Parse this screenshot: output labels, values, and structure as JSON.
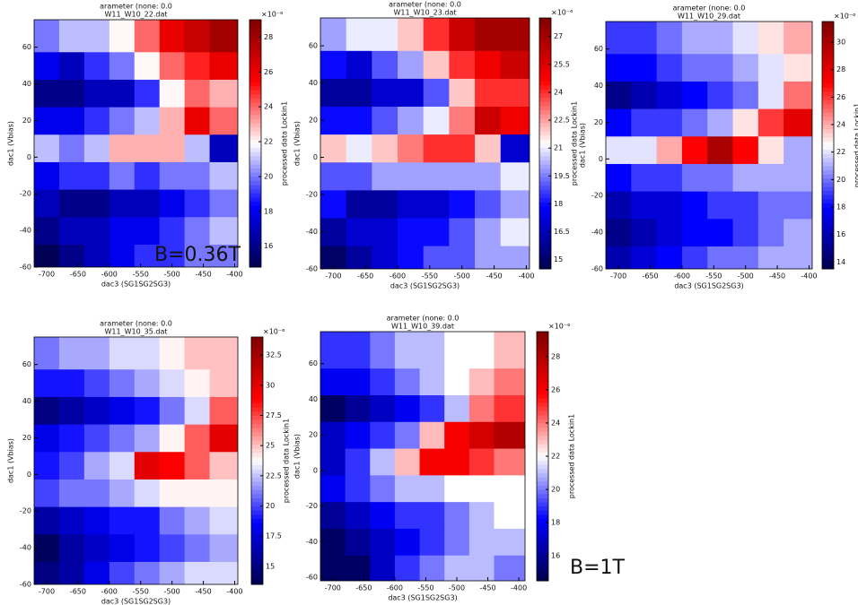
{
  "chart_data": [
    {
      "type": "heatmap",
      "title": "arameter (none: 0.0",
      "subtitle": "W11_W10_22.dat",
      "xlabel": "dac3 (SG1SG2SG3)",
      "ylabel": "dac1 (Vbias)",
      "colorbar_label": "processed data Lockin1",
      "colorbar_scale": "×10⁻⁶",
      "annotation": "B=0.36T",
      "x": [
        -700,
        -660,
        -620,
        -580,
        -540,
        -500,
        -460,
        -420
      ],
      "y": [
        -55,
        -40,
        -25,
        -10,
        5,
        20,
        35,
        50,
        65
      ],
      "z": [
        [
          15,
          16,
          17,
          18,
          19,
          19,
          20,
          20
        ],
        [
          16,
          17,
          17,
          18,
          18,
          19,
          20,
          21
        ],
        [
          17,
          16,
          16,
          17,
          17,
          18,
          19,
          20
        ],
        [
          18,
          19,
          19,
          20,
          19,
          20,
          20,
          21
        ],
        [
          21,
          20,
          21,
          23,
          23,
          23,
          21,
          17
        ],
        [
          18,
          18,
          19,
          20,
          21,
          23,
          26,
          24
        ],
        [
          16,
          16,
          17,
          17,
          19,
          22,
          24,
          23
        ],
        [
          18,
          17,
          19,
          20,
          22,
          24,
          25,
          26
        ],
        [
          20,
          21,
          21,
          22,
          24,
          26,
          27,
          28
        ]
      ],
      "xlim": [
        -720,
        -395
      ],
      "ylim": [
        -60,
        75
      ],
      "xticks": [
        -700,
        -650,
        -600,
        -550,
        -500,
        -450,
        -400
      ],
      "yticks": [
        -60,
        -40,
        -20,
        0,
        20,
        40,
        60
      ],
      "clim": [
        14.8,
        29
      ],
      "cticks": [
        16,
        18,
        20,
        22,
        24,
        26,
        28
      ],
      "colormap": [
        "#00004c",
        "#0000ff",
        "#ffffff",
        "#ff0000",
        "#7f0000"
      ]
    },
    {
      "type": "heatmap",
      "title": "arameter (none: 0.0",
      "subtitle": "W11_W10_23.dat",
      "xlabel": "dac3 (SG1SG2SG3)",
      "ylabel": "dac1 (Vbias)",
      "colorbar_label": "processed data Lockin1",
      "colorbar_scale": "×10⁻⁶",
      "x": [
        -700,
        -660,
        -620,
        -580,
        -540,
        -500,
        -460,
        -420
      ],
      "y": [
        -55,
        -40,
        -25,
        -10,
        5,
        20,
        35,
        50,
        65
      ],
      "z": [
        [
          15,
          16,
          17,
          18,
          19,
          19,
          20,
          20
        ],
        [
          16,
          17,
          17,
          18,
          18,
          19,
          20,
          21
        ],
        [
          18,
          16,
          16,
          17,
          17,
          18,
          19,
          20
        ],
        [
          19,
          19,
          20,
          20,
          20,
          20,
          20,
          21
        ],
        [
          22,
          21,
          22,
          23,
          24,
          24,
          22,
          17
        ],
        [
          18,
          18,
          19,
          20,
          21,
          23,
          26,
          25
        ],
        [
          16,
          16,
          17,
          17,
          19,
          22,
          24,
          24
        ],
        [
          18,
          17,
          19,
          20,
          22,
          24,
          25,
          26
        ],
        [
          20,
          21,
          21,
          22,
          24,
          26,
          27,
          27
        ]
      ],
      "xlim": [
        -720,
        -395
      ],
      "ylim": [
        -60,
        75
      ],
      "xticks": [
        -700,
        -650,
        -600,
        -550,
        -500,
        -450,
        -400
      ],
      "yticks": [
        -60,
        -40,
        -20,
        0,
        20,
        40,
        60
      ],
      "clim": [
        14.5,
        28
      ],
      "cticks": [
        15,
        16.5,
        18,
        19.5,
        21,
        22.5,
        24,
        25.5,
        27
      ],
      "colormap": [
        "#00004c",
        "#0000ff",
        "#ffffff",
        "#ff0000",
        "#7f0000"
      ]
    },
    {
      "type": "heatmap",
      "title": "arameter (none: 0.0",
      "subtitle": "W11_W10_29.dat",
      "xlabel": "dac3 (SG1SG2SG3)",
      "ylabel": "dac1 (Vbias)",
      "colorbar_label": "processed data Lockin1",
      "colorbar_scale": "×10⁻⁶",
      "x": [
        -700,
        -660,
        -620,
        -580,
        -540,
        -500,
        -460,
        -420
      ],
      "y": [
        -55,
        -40,
        -25,
        -10,
        5,
        20,
        35,
        50,
        65
      ],
      "z": [
        [
          16,
          17,
          18,
          19,
          20,
          20,
          21,
          21
        ],
        [
          15,
          16,
          17,
          18,
          18,
          19,
          20,
          21
        ],
        [
          16,
          17,
          17,
          18,
          19,
          19,
          20,
          20
        ],
        [
          18,
          19,
          19,
          20,
          20,
          21,
          21,
          21
        ],
        [
          22,
          22,
          24,
          27,
          30,
          27,
          23,
          21
        ],
        [
          18,
          19,
          19,
          20,
          21,
          23,
          26,
          28
        ],
        [
          15,
          16,
          17,
          18,
          19,
          20,
          22,
          25
        ],
        [
          18,
          18,
          19,
          20,
          20,
          21,
          22,
          23
        ],
        [
          19,
          19,
          20,
          21,
          21,
          22,
          23,
          24
        ]
      ],
      "xlim": [
        -720,
        -395
      ],
      "ylim": [
        -60,
        75
      ],
      "xticks": [
        -700,
        -650,
        -600,
        -550,
        -500,
        -450,
        -400
      ],
      "yticks": [
        -60,
        -40,
        -20,
        0,
        20,
        40,
        60
      ],
      "clim": [
        13.5,
        31.5
      ],
      "cticks": [
        14,
        16,
        18,
        20,
        22,
        24,
        26,
        28,
        30
      ],
      "colormap": [
        "#00004c",
        "#0000ff",
        "#ffffff",
        "#ff0000",
        "#7f0000"
      ]
    },
    {
      "type": "heatmap",
      "title": "arameter (none: 0.0",
      "subtitle": "W11_W10_35.dat",
      "xlabel": "dac3 (SG1SG2SG3)",
      "ylabel": "dac1 (Vbias)",
      "colorbar_label": "processed data Lockin1",
      "colorbar_scale": "×10⁻⁶",
      "x": [
        -700,
        -660,
        -620,
        -580,
        -540,
        -500,
        -460,
        -420
      ],
      "y": [
        -55,
        -40,
        -25,
        -10,
        5,
        20,
        35,
        50,
        65
      ],
      "z": [
        [
          15,
          16,
          18,
          20,
          21,
          22,
          23,
          23
        ],
        [
          14,
          16,
          17,
          18,
          19,
          20,
          21,
          22
        ],
        [
          16,
          17,
          18,
          19,
          19,
          21,
          22,
          23
        ],
        [
          20,
          21,
          21,
          22,
          23,
          24,
          24,
          24
        ],
        [
          19,
          20,
          22,
          23,
          30,
          29,
          27,
          25
        ],
        [
          18,
          19,
          20,
          21,
          22,
          24,
          27,
          30
        ],
        [
          15,
          16,
          17,
          18,
          19,
          21,
          23,
          27
        ],
        [
          19,
          19,
          20,
          21,
          22,
          23,
          24,
          25
        ],
        [
          21,
          22,
          22,
          23,
          23,
          24,
          25,
          25
        ]
      ],
      "xlim": [
        -720,
        -395
      ],
      "ylim": [
        -60,
        75
      ],
      "xticks": [
        -700,
        -650,
        -600,
        -550,
        -500,
        -450,
        -400
      ],
      "yticks": [
        -60,
        -40,
        -20,
        0,
        20,
        40,
        60
      ],
      "clim": [
        13.5,
        34
      ],
      "cticks": [
        15,
        17.5,
        20,
        22.5,
        25,
        27.5,
        30,
        32.5
      ],
      "colormap": [
        "#00004c",
        "#0000ff",
        "#ffffff",
        "#ff0000",
        "#7f0000"
      ]
    },
    {
      "type": "heatmap",
      "title": "arameter (none: 0.0",
      "subtitle": "W11_W10_39.dat",
      "xlabel": "dac3 (SG1SG2SG3)",
      "ylabel": "dac1 (Vbias)",
      "colorbar_label": "processed data Lockin1",
      "colorbar_scale": "×10⁻⁶",
      "annotation": "B=1T",
      "x": [
        -700,
        -660,
        -620,
        -580,
        -540,
        -500,
        -460,
        -420
      ],
      "y": [
        -55,
        -40,
        -25,
        -10,
        5,
        20,
        35,
        50,
        65
      ],
      "z": [
        [
          15,
          15,
          17,
          19,
          20,
          21,
          21,
          20
        ],
        [
          15,
          16,
          17,
          18,
          19,
          20,
          21,
          21
        ],
        [
          16,
          17,
          18,
          19,
          19,
          20,
          21,
          22
        ],
        [
          18,
          19,
          20,
          21,
          21,
          22,
          22,
          22
        ],
        [
          17,
          19,
          21,
          23,
          26,
          26,
          25,
          24
        ],
        [
          17,
          18,
          19,
          20,
          23,
          26,
          27,
          28
        ],
        [
          15,
          16,
          17,
          18,
          19,
          21,
          24,
          25
        ],
        [
          18,
          18,
          19,
          20,
          21,
          22,
          23,
          24
        ],
        [
          19,
          19,
          20,
          21,
          21,
          22,
          22,
          23
        ]
      ],
      "xlim": [
        -720,
        -390
      ],
      "ylim": [
        -62,
        78
      ],
      "xticks": [
        -700,
        -650,
        -600,
        -550,
        -500,
        -450,
        -400
      ],
      "yticks": [
        -60,
        -40,
        -20,
        0,
        20,
        40,
        60
      ],
      "clim": [
        14.5,
        29.5
      ],
      "cticks": [
        16,
        18,
        20,
        22,
        24,
        26,
        28
      ],
      "colormap": [
        "#00004c",
        "#0000ff",
        "#ffffff",
        "#ff0000",
        "#7f0000"
      ]
    }
  ]
}
